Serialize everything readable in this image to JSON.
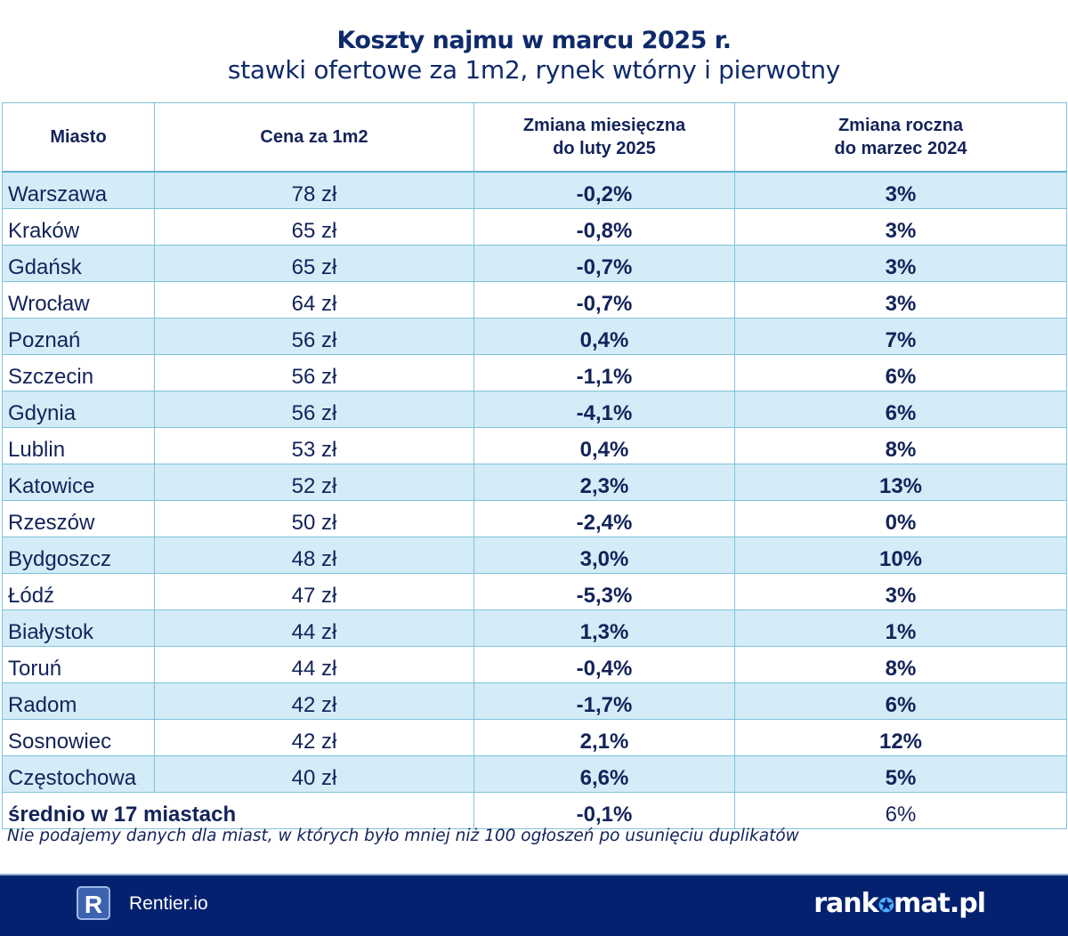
{
  "title": "Koszty najmu w marcu 2025 r.",
  "subtitle": "stawki ofertowe za 1m2, rynek wtórny i pierwotny",
  "chart_data": {
    "type": "table",
    "columns": [
      "Miasto",
      "Cena za 1m2",
      "Zmiana miesięczna\ndo luty 2025",
      "Zmiana roczna\ndo marzec 2024"
    ],
    "rows": [
      [
        "Warszawa",
        "78 zł",
        "-0,2%",
        "3%"
      ],
      [
        "Kraków",
        "65 zł",
        "-0,8%",
        "3%"
      ],
      [
        "Gdańsk",
        "65 zł",
        "-0,7%",
        "3%"
      ],
      [
        "Wrocław",
        "64 zł",
        "-0,7%",
        "3%"
      ],
      [
        "Poznań",
        "56 zł",
        "0,4%",
        "7%"
      ],
      [
        "Szczecin",
        "56 zł",
        "-1,1%",
        "6%"
      ],
      [
        "Gdynia",
        "56 zł",
        "-4,1%",
        "6%"
      ],
      [
        "Lublin",
        "53 zł",
        "0,4%",
        "8%"
      ],
      [
        "Katowice",
        "52 zł",
        "2,3%",
        "13%"
      ],
      [
        "Rzeszów",
        "50 zł",
        "-2,4%",
        "0%"
      ],
      [
        "Bydgoszcz",
        "48 zł",
        "3,0%",
        "10%"
      ],
      [
        "Łódź",
        "47 zł",
        "-5,3%",
        "3%"
      ],
      [
        "Białystok",
        "44 zł",
        "1,3%",
        "1%"
      ],
      [
        "Toruń",
        "44 zł",
        "-0,4%",
        "8%"
      ],
      [
        "Radom",
        "42 zł",
        "-1,7%",
        "6%"
      ],
      [
        "Sosnowiec",
        "42 zł",
        "2,1%",
        "12%"
      ],
      [
        "Częstochowa",
        "40 zł",
        "6,6%",
        "5%"
      ]
    ],
    "summary": [
      "średnio w 17 miastach",
      "",
      "-0,1%",
      "6%"
    ]
  },
  "note": "Nie podajemy danych dla miast, w których było mniej niż 100 ogłoszeń po usunięciu duplikatów",
  "footer": {
    "left_logo_letter": "R",
    "left_brand": "Rentier.io",
    "right_brand_a": "rank",
    "right_brand_b": "mat.pl"
  },
  "colors": {
    "footer_bg": "#03216f",
    "row_highlight": "#d3ecf8",
    "border": "#7fc3da",
    "text": "#13235a"
  }
}
